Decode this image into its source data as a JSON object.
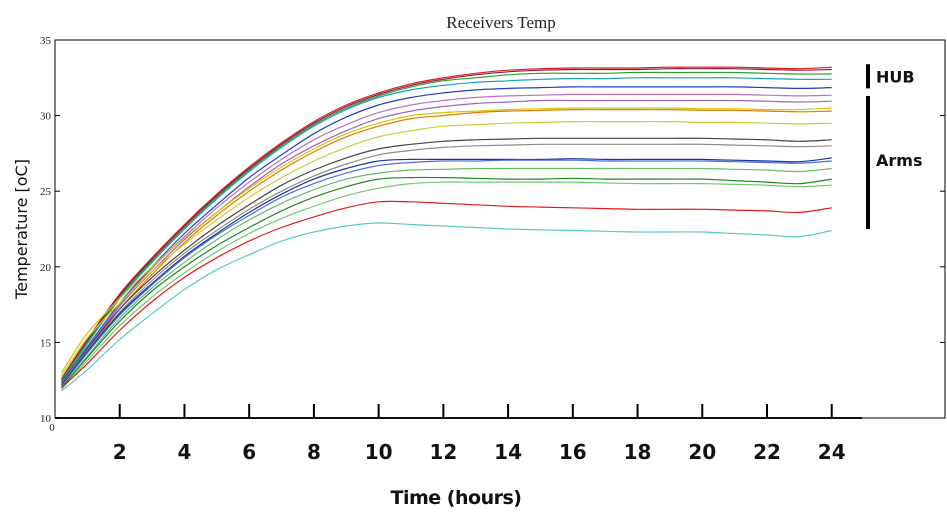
{
  "chart_data": {
    "type": "line",
    "title": "Receivers Temp",
    "xlabel": "Time (hours)",
    "ylabel": "Temperature [oC]",
    "xlim": [
      0,
      27.5
    ],
    "ylim": [
      10,
      35
    ],
    "x_ticks": [
      2,
      4,
      6,
      8,
      10,
      12,
      14,
      16,
      18,
      20,
      22,
      24
    ],
    "x_origin_label": "0",
    "y_ticks": [
      10,
      15,
      20,
      25,
      30,
      35
    ],
    "grid": false,
    "x": [
      0.2,
      1,
      2,
      3,
      4,
      5,
      6,
      7,
      8,
      9,
      10,
      11,
      12,
      13,
      14,
      15,
      16,
      17,
      18,
      19,
      20,
      21,
      22,
      23,
      24
    ],
    "series": [
      {
        "color": "#e31a1c",
        "values": [
          12.6,
          15.2,
          18.2,
          20.6,
          22.8,
          24.8,
          26.6,
          28.2,
          29.6,
          30.7,
          31.5,
          32.1,
          32.5,
          32.8,
          33.0,
          33.1,
          33.15,
          33.15,
          33.15,
          33.2,
          33.2,
          33.2,
          33.15,
          33.1,
          33.2
        ]
      },
      {
        "color": "#8b1a4a",
        "values": [
          12.5,
          15.1,
          18.1,
          20.5,
          22.7,
          24.7,
          26.5,
          28.1,
          29.5,
          30.6,
          31.4,
          32.0,
          32.4,
          32.7,
          32.9,
          33.0,
          33.05,
          33.05,
          33.05,
          33.1,
          33.1,
          33.1,
          33.05,
          33.0,
          33.05
        ]
      },
      {
        "color": "#2ca02c",
        "values": [
          12.5,
          15.0,
          18.0,
          20.4,
          22.6,
          24.6,
          26.4,
          28.0,
          29.4,
          30.5,
          31.3,
          31.9,
          32.3,
          32.5,
          32.7,
          32.8,
          32.8,
          32.8,
          32.85,
          32.85,
          32.85,
          32.85,
          32.8,
          32.75,
          32.75
        ]
      },
      {
        "color": "#17a2b8",
        "values": [
          12.4,
          14.9,
          17.9,
          20.3,
          22.5,
          24.5,
          26.3,
          27.9,
          29.3,
          30.4,
          31.2,
          31.7,
          32.0,
          32.2,
          32.3,
          32.4,
          32.45,
          32.45,
          32.5,
          32.5,
          32.5,
          32.5,
          32.45,
          32.4,
          32.4
        ]
      },
      {
        "color": "#1f3fbf",
        "values": [
          12.3,
          14.7,
          17.6,
          20.0,
          22.2,
          24.1,
          25.9,
          27.4,
          28.8,
          29.9,
          30.7,
          31.2,
          31.5,
          31.7,
          31.8,
          31.85,
          31.9,
          31.9,
          31.9,
          31.9,
          31.9,
          31.9,
          31.85,
          31.8,
          31.85
        ]
      },
      {
        "color": "#c06fc0",
        "values": [
          12.3,
          14.6,
          17.5,
          19.9,
          22.0,
          23.9,
          25.6,
          27.1,
          28.4,
          29.4,
          30.2,
          30.7,
          31.0,
          31.2,
          31.3,
          31.35,
          31.4,
          31.4,
          31.4,
          31.4,
          31.4,
          31.4,
          31.35,
          31.3,
          31.35
        ]
      },
      {
        "color": "#9467bd",
        "values": [
          12.2,
          14.5,
          17.4,
          19.7,
          21.8,
          23.6,
          25.3,
          26.8,
          28.0,
          29.0,
          29.8,
          30.3,
          30.6,
          30.8,
          30.9,
          31.0,
          31.0,
          31.0,
          31.0,
          31.0,
          31.0,
          31.0,
          30.95,
          30.9,
          30.95
        ]
      },
      {
        "color": "#d4c800",
        "values": [
          13.0,
          15.6,
          17.9,
          20.0,
          21.9,
          23.6,
          25.2,
          26.6,
          27.8,
          28.8,
          29.5,
          30.0,
          30.2,
          30.3,
          30.4,
          30.45,
          30.5,
          30.5,
          30.5,
          30.5,
          30.45,
          30.45,
          30.4,
          30.4,
          30.5
        ]
      },
      {
        "color": "#e07b00",
        "values": [
          12.2,
          14.5,
          17.2,
          19.5,
          21.6,
          23.4,
          25.0,
          26.4,
          27.6,
          28.6,
          29.3,
          29.8,
          30.0,
          30.2,
          30.3,
          30.35,
          30.4,
          30.4,
          30.4,
          30.4,
          30.35,
          30.35,
          30.3,
          30.25,
          30.3
        ]
      },
      {
        "color": "#cccc33",
        "values": [
          12.8,
          15.3,
          17.6,
          19.7,
          21.5,
          23.1,
          24.6,
          25.9,
          27.0,
          27.9,
          28.6,
          29.0,
          29.3,
          29.4,
          29.5,
          29.55,
          29.6,
          29.6,
          29.6,
          29.6,
          29.55,
          29.55,
          29.5,
          29.45,
          29.5
        ]
      },
      {
        "color": "#444444",
        "values": [
          12.4,
          14.6,
          17.2,
          19.3,
          21.1,
          22.7,
          24.1,
          25.4,
          26.4,
          27.2,
          27.8,
          28.1,
          28.3,
          28.4,
          28.45,
          28.5,
          28.5,
          28.5,
          28.5,
          28.5,
          28.5,
          28.45,
          28.4,
          28.3,
          28.4
        ]
      },
      {
        "color": "#8c8c8c",
        "values": [
          12.3,
          14.5,
          17.0,
          19.1,
          20.9,
          22.4,
          23.8,
          25.0,
          26.0,
          26.8,
          27.4,
          27.7,
          27.9,
          28.0,
          28.05,
          28.1,
          28.1,
          28.1,
          28.1,
          28.1,
          28.1,
          28.05,
          28.0,
          27.95,
          28.0
        ]
      },
      {
        "color": "#1a3399",
        "values": [
          12.2,
          14.4,
          16.9,
          18.9,
          20.7,
          22.2,
          23.6,
          24.8,
          25.8,
          26.5,
          27.0,
          27.1,
          27.1,
          27.1,
          27.1,
          27.1,
          27.15,
          27.1,
          27.1,
          27.1,
          27.1,
          27.05,
          27.0,
          26.95,
          27.2
        ]
      },
      {
        "color": "#4a6fe0",
        "values": [
          12.1,
          14.3,
          16.8,
          18.8,
          20.6,
          22.1,
          23.4,
          24.6,
          25.5,
          26.2,
          26.7,
          26.9,
          27.0,
          27.0,
          27.05,
          27.05,
          27.05,
          27.0,
          27.0,
          27.0,
          27.0,
          26.95,
          26.9,
          26.85,
          27.0
        ]
      },
      {
        "color": "#66bb66",
        "values": [
          12.0,
          14.1,
          16.6,
          18.6,
          20.3,
          21.8,
          23.1,
          24.2,
          25.1,
          25.8,
          26.2,
          26.4,
          26.45,
          26.5,
          26.5,
          26.5,
          26.5,
          26.5,
          26.5,
          26.5,
          26.5,
          26.45,
          26.4,
          26.3,
          26.5
        ]
      },
      {
        "color": "#1a8a1a",
        "values": [
          12.0,
          14.0,
          16.4,
          18.4,
          20.0,
          21.4,
          22.6,
          23.7,
          24.6,
          25.3,
          25.8,
          25.9,
          25.9,
          25.85,
          25.8,
          25.8,
          25.85,
          25.8,
          25.8,
          25.8,
          25.8,
          25.7,
          25.6,
          25.5,
          25.8
        ]
      },
      {
        "color": "#76c476",
        "values": [
          11.9,
          13.8,
          16.1,
          18.0,
          19.6,
          21.0,
          22.2,
          23.2,
          24.0,
          24.7,
          25.2,
          25.5,
          25.6,
          25.6,
          25.6,
          25.6,
          25.6,
          25.55,
          25.5,
          25.5,
          25.5,
          25.45,
          25.4,
          25.3,
          25.4
        ]
      },
      {
        "color": "#e31a1c",
        "values": [
          12.0,
          13.6,
          15.8,
          17.7,
          19.3,
          20.6,
          21.7,
          22.6,
          23.3,
          23.9,
          24.3,
          24.3,
          24.2,
          24.1,
          24.0,
          23.95,
          23.9,
          23.85,
          23.8,
          23.8,
          23.8,
          23.75,
          23.7,
          23.6,
          23.9
        ]
      },
      {
        "color": "#5bc8c8",
        "values": [
          11.8,
          13.2,
          15.2,
          16.9,
          18.5,
          19.8,
          20.8,
          21.7,
          22.3,
          22.7,
          22.9,
          22.8,
          22.7,
          22.6,
          22.5,
          22.45,
          22.4,
          22.35,
          22.3,
          22.3,
          22.3,
          22.2,
          22.1,
          22.0,
          22.4
        ]
      }
    ],
    "annotations": [
      {
        "text": "HUB",
        "range": [
          31.8,
          33.4
        ]
      },
      {
        "text": "Arms",
        "range": [
          22.5,
          31.3
        ]
      }
    ]
  }
}
